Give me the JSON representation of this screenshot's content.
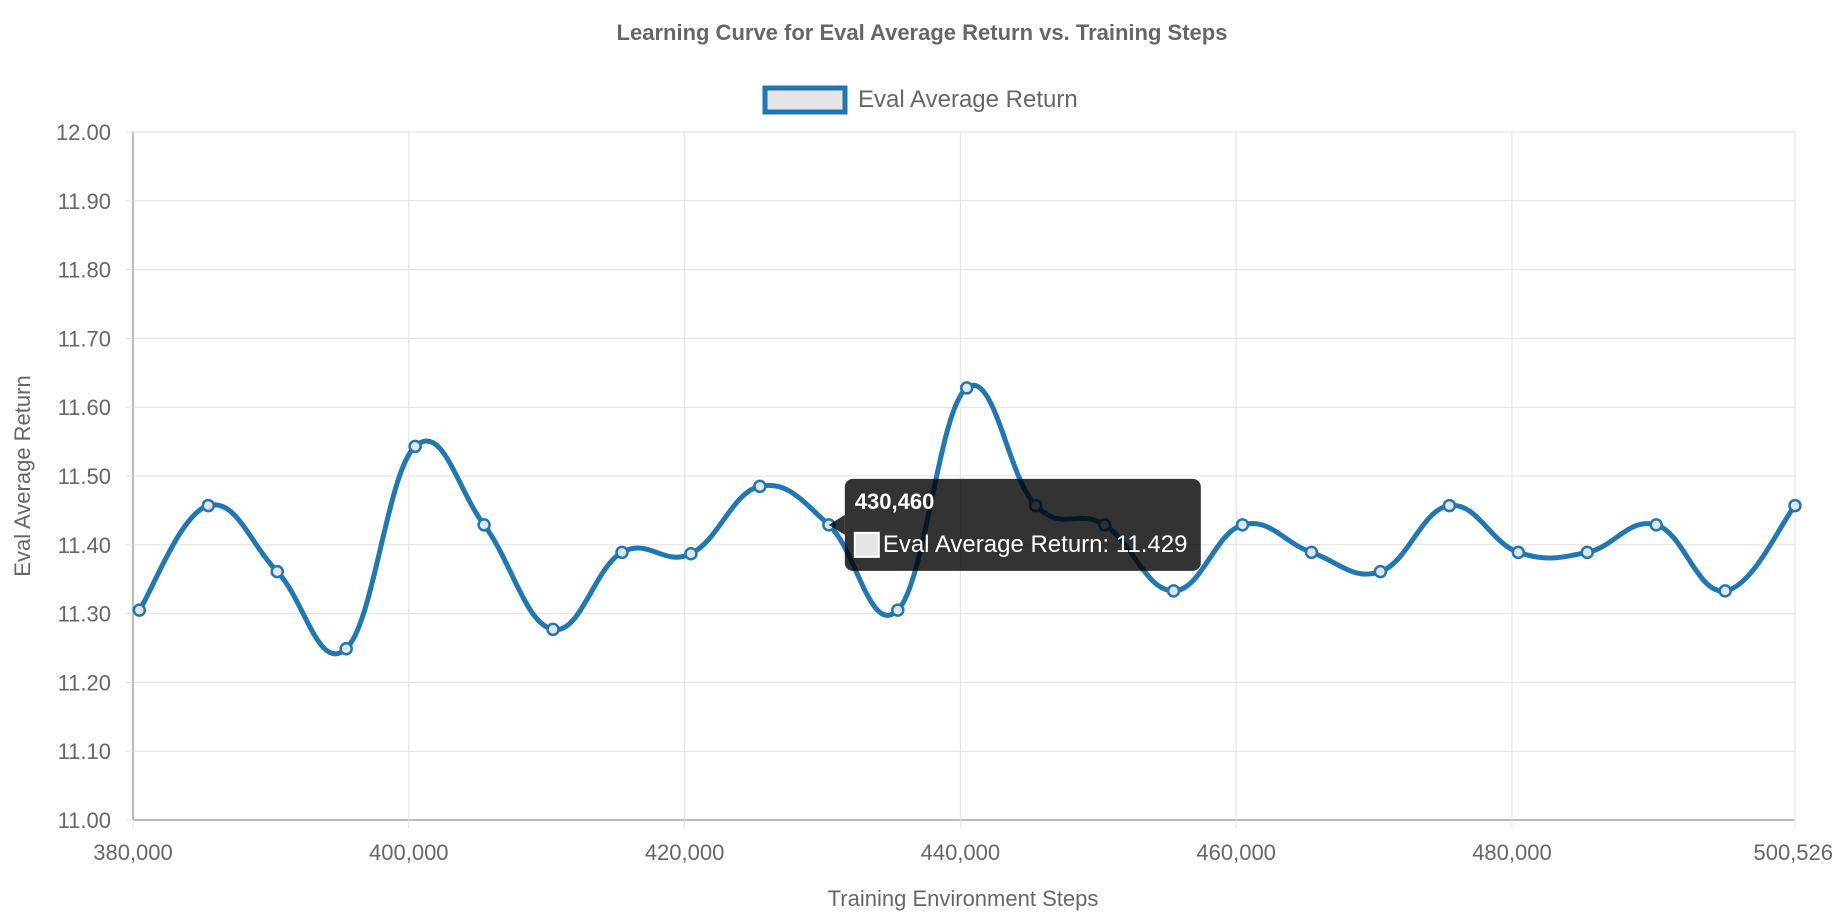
{
  "chart_data": {
    "type": "line",
    "title": "Learning Curve for Eval Average Return vs. Training Steps",
    "xlabel": "Training Environment Steps",
    "ylabel": "Eval Average Return",
    "xlim": [
      380000,
      500526
    ],
    "ylim": [
      11.0,
      12.0
    ],
    "x_ticks": [
      380000,
      400000,
      420000,
      440000,
      460000,
      480000,
      500526
    ],
    "x_tick_labels": [
      "380,000",
      "400,000",
      "420,000",
      "440,000",
      "460,000",
      "480,000",
      "500,526"
    ],
    "y_ticks": [
      11.0,
      11.1,
      11.2,
      11.3,
      11.4,
      11.5,
      11.6,
      11.7,
      11.8,
      11.9,
      12.0
    ],
    "y_tick_labels": [
      "11.00",
      "11.10",
      "11.20",
      "11.30",
      "11.40",
      "11.50",
      "11.60",
      "11.70",
      "11.80",
      "11.90",
      "12.00"
    ],
    "grid": true,
    "legend_position": "top",
    "series": [
      {
        "name": "Eval Average Return",
        "color": "#1f77b4",
        "x": [
          380460,
          385460,
          390460,
          395460,
          400460,
          405460,
          410460,
          415460,
          420460,
          425460,
          430460,
          435460,
          440460,
          445460,
          450460,
          455460,
          460460,
          465460,
          470460,
          475460,
          480460,
          485460,
          490460,
          495460,
          500526
        ],
        "y": [
          11.305,
          11.457,
          11.361,
          11.249,
          11.543,
          11.429,
          11.277,
          11.389,
          11.387,
          11.485,
          11.429,
          11.305,
          11.628,
          11.457,
          11.429,
          11.333,
          11.429,
          11.389,
          11.361,
          11.457,
          11.389,
          11.389,
          11.429,
          11.333,
          11.457
        ]
      }
    ],
    "tooltip": {
      "title": "430,460",
      "label": "Eval Average Return: 11.429",
      "point_index": 10
    }
  }
}
